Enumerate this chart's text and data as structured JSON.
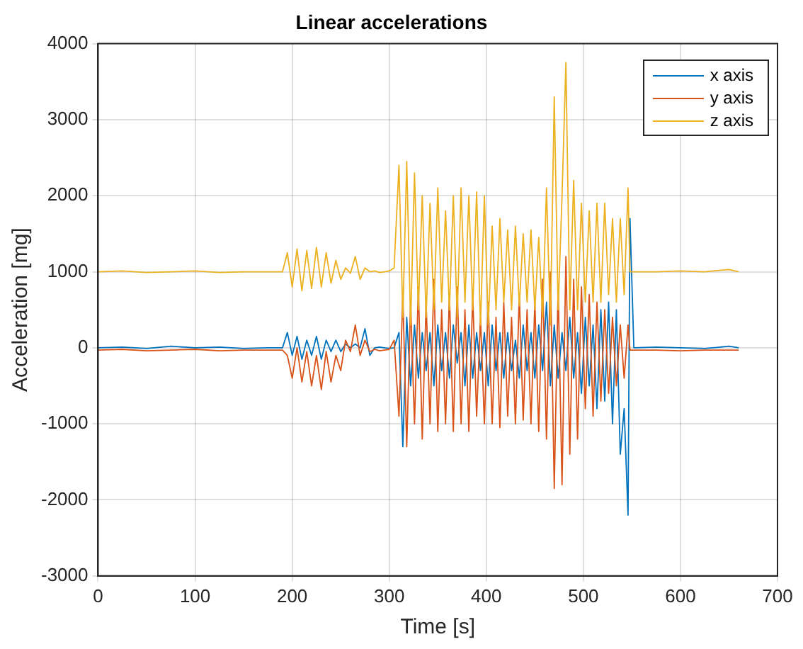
{
  "chart_data": {
    "type": "line",
    "title": "Linear accelerations",
    "xlabel": "Time [s]",
    "ylabel": "Acceleration [mg]",
    "x": [
      0,
      25,
      50,
      75,
      100,
      125,
      150,
      175,
      185,
      190,
      195,
      200,
      205,
      210,
      215,
      220,
      225,
      230,
      235,
      240,
      245,
      250,
      255,
      260,
      265,
      270,
      275,
      280,
      285,
      290,
      295,
      300,
      305,
      310,
      314,
      318,
      322,
      326,
      330,
      334,
      338,
      342,
      346,
      350,
      354,
      358,
      362,
      366,
      370,
      374,
      378,
      382,
      386,
      390,
      394,
      398,
      402,
      406,
      410,
      414,
      418,
      422,
      426,
      430,
      434,
      438,
      442,
      446,
      450,
      454,
      458,
      462,
      466,
      470,
      474,
      478,
      482,
      486,
      490,
      494,
      498,
      502,
      506,
      510,
      514,
      518,
      522,
      526,
      530,
      534,
      538,
      542,
      546,
      548,
      552,
      575,
      600,
      625,
      650,
      660
    ],
    "series": [
      {
        "name": "x axis",
        "color": "#0072bd",
        "values": [
          0,
          10,
          -10,
          20,
          0,
          10,
          -10,
          0,
          0,
          0,
          200,
          -100,
          150,
          -150,
          100,
          -100,
          150,
          -150,
          100,
          -50,
          100,
          -50,
          50,
          0,
          50,
          0,
          250,
          -100,
          0,
          10,
          0,
          -10,
          0,
          200,
          -1300,
          400,
          -500,
          300,
          -400,
          200,
          -300,
          200,
          -500,
          300,
          -300,
          200,
          -400,
          300,
          -200,
          200,
          -500,
          300,
          -400,
          200,
          -300,
          200,
          -500,
          300,
          -300,
          200,
          -400,
          200,
          -300,
          100,
          -400,
          300,
          -300,
          200,
          -400,
          300,
          -300,
          600,
          -500,
          300,
          -400,
          200,
          -300,
          400,
          -400,
          200,
          -600,
          400,
          -500,
          300,
          -800,
          500,
          -700,
          600,
          -1000,
          500,
          -1400,
          -800,
          -2200,
          1700,
          0,
          10,
          0,
          -10,
          20,
          0
        ]
      },
      {
        "name": "y axis",
        "color": "#d95319",
        "values": [
          -30,
          -20,
          -40,
          -30,
          -20,
          -40,
          -30,
          -30,
          -30,
          -30,
          -100,
          -400,
          0,
          -450,
          -50,
          -500,
          -100,
          -550,
          -50,
          -450,
          -100,
          -300,
          100,
          -50,
          300,
          -100,
          100,
          -50,
          -20,
          -40,
          -30,
          -20,
          100,
          -900,
          700,
          -1300,
          600,
          -1000,
          800,
          -1200,
          600,
          -1000,
          900,
          -1100,
          500,
          -1000,
          700,
          -1100,
          800,
          -1000,
          500,
          -1100,
          700,
          -900,
          400,
          -1000,
          600,
          -1000,
          400,
          -1050,
          600,
          -900,
          400,
          -1000,
          700,
          -950,
          500,
          -1000,
          600,
          -1100,
          900,
          -1200,
          1000,
          -1850,
          800,
          -1800,
          1200,
          -1400,
          900,
          -1200,
          800,
          -800,
          700,
          -900,
          600,
          -700,
          500,
          -600,
          400,
          -500,
          300,
          -400,
          300,
          -30,
          -30,
          -30,
          -40,
          -30,
          -30,
          -30
        ]
      },
      {
        "name": "z axis",
        "color": "#edb120",
        "values": [
          1000,
          1010,
          990,
          1000,
          1010,
          990,
          1000,
          1000,
          1000,
          1000,
          1250,
          800,
          1300,
          750,
          1280,
          780,
          1320,
          800,
          1250,
          850,
          1150,
          900,
          1050,
          980,
          1200,
          900,
          1050,
          1000,
          1010,
          990,
          1000,
          1010,
          1050,
          2400,
          400,
          2450,
          300,
          2300,
          500,
          2000,
          400,
          1900,
          500,
          2100,
          600,
          1800,
          500,
          2000,
          400,
          2100,
          600,
          2000,
          500,
          2050,
          300,
          2000,
          300,
          1600,
          500,
          1700,
          600,
          1550,
          500,
          1600,
          550,
          1500,
          600,
          1550,
          500,
          1450,
          400,
          2100,
          300,
          3300,
          500,
          2000,
          3750,
          500,
          2200,
          500,
          1900,
          600,
          1800,
          600,
          1900,
          600,
          1900,
          700,
          1700,
          600,
          1700,
          700,
          2100,
          1000,
          1000,
          1000,
          1010,
          1000,
          1030,
          1000
        ]
      }
    ],
    "xlim": [
      0,
      700
    ],
    "xticks": [
      0,
      100,
      200,
      300,
      400,
      500,
      600,
      700
    ],
    "ylim": [
      -3000,
      4000
    ],
    "yticks": [
      -3000,
      -2000,
      -1000,
      0,
      1000,
      2000,
      3000,
      4000
    ],
    "grid": true,
    "legend": "top right",
    "line_style": "solid",
    "marker": "none"
  }
}
